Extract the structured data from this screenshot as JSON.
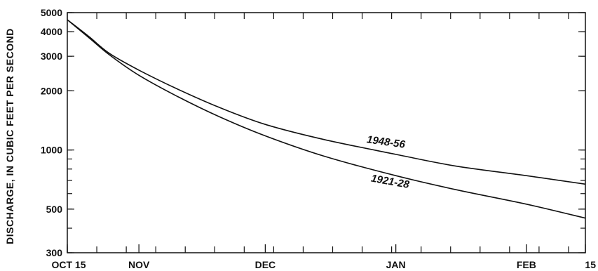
{
  "chart_data": {
    "type": "line",
    "ylabel": "DISCHARGE, IN CUBIC FEET PER SECOND",
    "xlabel": "",
    "yscale": "log",
    "ylim": [
      300,
      5000
    ],
    "y_tick_labels": [
      "300",
      "500",
      "1000",
      "2000",
      "3000",
      "4000",
      "5000"
    ],
    "y_tick_values": [
      300,
      500,
      1000,
      2000,
      3000,
      4000,
      5000
    ],
    "x_tick_labels": [
      "OCT 15",
      "NOV",
      "DEC",
      "JAN",
      "FEB",
      "15"
    ],
    "x_tick_dates": [
      "Oct 15",
      "Nov 1",
      "Dec 1",
      "Jan 1",
      "Feb 1",
      "Feb 15"
    ],
    "series": [
      {
        "name": "1948-56",
        "x": [
          "Oct 15",
          "Oct 20",
          "Oct 25",
          "Nov 1",
          "Nov 10",
          "Nov 20",
          "Dec 1",
          "Dec 15",
          "Jan 1",
          "Jan 15",
          "Feb 1",
          "Feb 15"
        ],
        "y": [
          4600,
          3800,
          3100,
          2550,
          2050,
          1650,
          1350,
          1130,
          950,
          830,
          740,
          670
        ]
      },
      {
        "name": "1921-28",
        "x": [
          "Oct 15",
          "Oct 20",
          "Oct 25",
          "Nov 1",
          "Nov 10",
          "Nov 20",
          "Dec 1",
          "Dec 15",
          "Jan 1",
          "Jan 15",
          "Feb 1",
          "Feb 15"
        ],
        "y": [
          4600,
          3750,
          3050,
          2400,
          1880,
          1480,
          1180,
          930,
          740,
          630,
          530,
          450
        ]
      }
    ],
    "grid": false
  }
}
